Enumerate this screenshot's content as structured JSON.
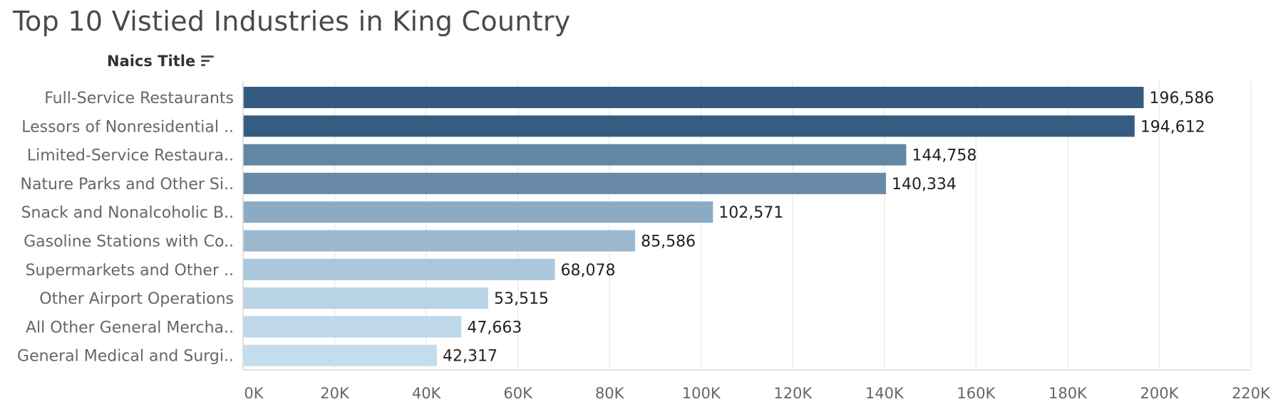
{
  "title": "Top 10 Vistied Industries in King Country",
  "field_header": "Naics Title",
  "icons": {
    "sort": "sort-descending-icon"
  },
  "colors": {
    "title": "#4a4a4a",
    "axis_text": "#666666",
    "gridline": "#ebebeb",
    "value_label": "#222222",
    "bar_scale": [
      "#345a80",
      "#c3ddee"
    ]
  },
  "chart_data": {
    "type": "bar",
    "orientation": "horizontal",
    "title": "Top 10 Vistied Industries in King Country",
    "ylabel": "Naics Title",
    "xlabel": "",
    "categories": [
      "Full-Service Restaurants",
      "Lessors of Nonresidential ..",
      "Limited-Service Restaura..",
      "Nature Parks and Other Si..",
      "Snack and Nonalcoholic B..",
      "Gasoline Stations with Co..",
      "Supermarkets and Other ..",
      "Other Airport Operations",
      "All Other General Mercha..",
      "General Medical and Surgi.."
    ],
    "values": [
      196586,
      194612,
      144758,
      140334,
      102571,
      85586,
      68078,
      53515,
      47663,
      42317
    ],
    "value_labels": [
      "196,586",
      "194,612",
      "144,758",
      "140,334",
      "102,571",
      "85,586",
      "68,078",
      "53,515",
      "47,663",
      "42,317"
    ],
    "xlim": [
      0,
      220000
    ],
    "x_ticks": [
      0,
      20000,
      40000,
      60000,
      80000,
      100000,
      120000,
      140000,
      160000,
      180000,
      200000,
      220000
    ],
    "x_tick_labels": [
      "0K",
      "20K",
      "40K",
      "60K",
      "80K",
      "100K",
      "120K",
      "140K",
      "160K",
      "180K",
      "200K",
      "220K"
    ],
    "grid": true,
    "color_encoding": "sequential blue by value"
  }
}
